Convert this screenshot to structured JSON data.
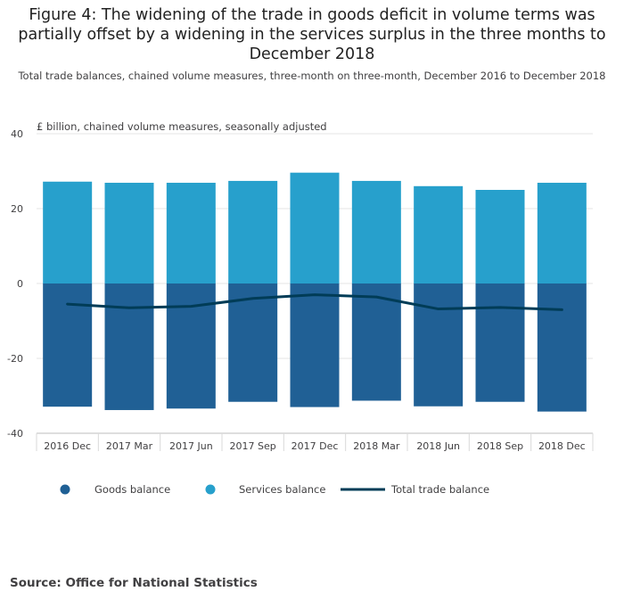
{
  "title": "Figure 4: The widening of the trade in goods deficit in volume terms was partially offset by a widening in the services surplus in the three months to December 2018",
  "subtitle": "Total trade balances, chained volume measures, three-month on three-month, December 2016 to December 2018",
  "source": "Source: Office for National Statistics",
  "colors": {
    "goods": "#206095",
    "services": "#27A0CC",
    "total": "#003C57"
  },
  "chart_data": {
    "type": "bar",
    "stacked": true,
    "ylabel": "£ billion, chained volume measures, seasonally adjusted",
    "ylim": [
      -40,
      40
    ],
    "yticks": [
      -40,
      -20,
      0,
      20,
      40
    ],
    "grid": true,
    "legend_position": "bottom",
    "categories": [
      "2016 Dec",
      "2017 Mar",
      "2017 Jun",
      "2017 Sep",
      "2017 Dec",
      "2018 Mar",
      "2018 Jun",
      "2018 Sep",
      "2018 Dec"
    ],
    "series": [
      {
        "name": "Goods balance",
        "type": "bar",
        "values": [
          -32.9,
          -33.8,
          -33.4,
          -31.6,
          -33.0,
          -31.3,
          -32.8,
          -31.6,
          -34.2
        ]
      },
      {
        "name": "Services balance",
        "type": "bar",
        "values": [
          27.2,
          26.9,
          26.9,
          27.4,
          29.6,
          27.4,
          26.0,
          25.0,
          26.9
        ]
      },
      {
        "name": "Total trade balance",
        "type": "line",
        "values": [
          -5.5,
          -6.5,
          -6.1,
          -4.0,
          -3.0,
          -3.6,
          -6.8,
          -6.4,
          -7.0
        ]
      }
    ]
  }
}
